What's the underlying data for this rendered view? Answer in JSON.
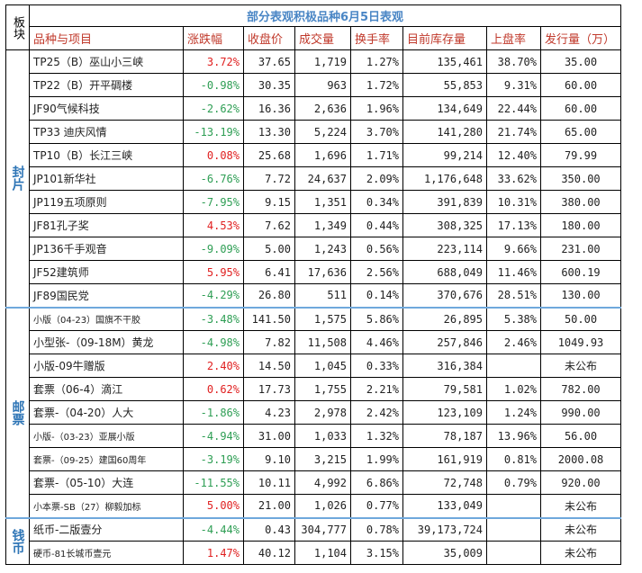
{
  "header": {
    "board": "板块",
    "title": "部分表观积极品种6月5日表观",
    "columns": [
      "品种与项目",
      "涨跌幅",
      "收盘价",
      "成交量",
      "换手率",
      "目前库存量",
      "上盘率",
      "发行量（万）"
    ]
  },
  "sectors": [
    {
      "label": "封片",
      "rows": [
        {
          "name": "TP25（B）巫山小三峡",
          "change": "3.72%",
          "dir": "up",
          "close": "37.65",
          "volume": "1,719",
          "turnover": "1.27%",
          "stock": "135,461",
          "listing": "38.70%",
          "issue": "35.00"
        },
        {
          "name": "TP22（B）开平碉楼",
          "change": "-0.98%",
          "dir": "down",
          "close": "30.35",
          "volume": "963",
          "turnover": "1.72%",
          "stock": "55,853",
          "listing": "9.31%",
          "issue": "60.00"
        },
        {
          "name": "JF90气候科技",
          "change": "-2.62%",
          "dir": "down",
          "close": "16.36",
          "volume": "2,636",
          "turnover": "1.96%",
          "stock": "134,649",
          "listing": "22.44%",
          "issue": "60.00"
        },
        {
          "name": "TP33 迪庆风情",
          "change": "-13.19%",
          "dir": "down",
          "close": "13.30",
          "volume": "5,224",
          "turnover": "3.70%",
          "stock": "141,280",
          "listing": "21.74%",
          "issue": "65.00"
        },
        {
          "name": "TP10（B）长江三峡",
          "change": "0.08%",
          "dir": "up",
          "close": "25.68",
          "volume": "1,696",
          "turnover": "1.71%",
          "stock": "99,214",
          "listing": "12.40%",
          "issue": "79.99"
        },
        {
          "name": "JP101新华社",
          "change": "-6.76%",
          "dir": "down",
          "close": "7.72",
          "volume": "24,637",
          "turnover": "2.09%",
          "stock": "1,176,648",
          "listing": "33.62%",
          "issue": "350.00"
        },
        {
          "name": "JP119五项原则",
          "change": "-7.95%",
          "dir": "down",
          "close": "9.15",
          "volume": "1,351",
          "turnover": "0.34%",
          "stock": "391,839",
          "listing": "10.31%",
          "issue": "380.00"
        },
        {
          "name": "JF81孔子奖",
          "change": "4.53%",
          "dir": "up",
          "close": "7.62",
          "volume": "1,349",
          "turnover": "0.44%",
          "stock": "308,325",
          "listing": "17.13%",
          "issue": "180.00"
        },
        {
          "name": "JP136千手观音",
          "change": "-9.09%",
          "dir": "down",
          "close": "5.00",
          "volume": "1,243",
          "turnover": "0.56%",
          "stock": "223,114",
          "listing": "9.66%",
          "issue": "231.00"
        },
        {
          "name": "JF52建筑师",
          "change": "5.95%",
          "dir": "up",
          "close": "6.41",
          "volume": "17,636",
          "turnover": "2.56%",
          "stock": "688,049",
          "listing": "11.46%",
          "issue": "600.19"
        },
        {
          "name": "JF89国民党",
          "change": "-4.29%",
          "dir": "down",
          "close": "26.80",
          "volume": "511",
          "turnover": "0.14%",
          "stock": "370,676",
          "listing": "28.51%",
          "issue": "130.00"
        }
      ]
    },
    {
      "label": "邮票",
      "rows": [
        {
          "name": "小版（04-23）国旗不干胶",
          "small": true,
          "change": "-3.48%",
          "dir": "down",
          "close": "141.50",
          "volume": "1,575",
          "turnover": "5.86%",
          "stock": "26,895",
          "listing": "5.38%",
          "issue": "50.00"
        },
        {
          "name": "小型张-（09-18M）黄龙",
          "change": "-4.98%",
          "dir": "down",
          "close": "7.82",
          "volume": "11,508",
          "turnover": "4.46%",
          "stock": "257,846",
          "listing": "2.46%",
          "issue": "1049.93"
        },
        {
          "name": "小版-09牛赠版",
          "change": "2.40%",
          "dir": "up",
          "close": "14.50",
          "volume": "1,045",
          "turnover": "0.33%",
          "stock": "316,384",
          "listing": "",
          "issue": "未公布"
        },
        {
          "name": "套票（06-4）滴江",
          "change": "0.62%",
          "dir": "up",
          "close": "17.73",
          "volume": "1,755",
          "turnover": "2.21%",
          "stock": "79,581",
          "listing": "1.02%",
          "issue": "782.00"
        },
        {
          "name": "套票-（04-20）人大",
          "change": "-1.86%",
          "dir": "down",
          "close": "4.23",
          "volume": "2,978",
          "turnover": "2.42%",
          "stock": "123,109",
          "listing": "1.24%",
          "issue": "990.00"
        },
        {
          "name": "小版-（03-23）亚展小版",
          "small": true,
          "change": "-4.94%",
          "dir": "down",
          "close": "31.00",
          "volume": "1,033",
          "turnover": "1.32%",
          "stock": "78,187",
          "listing": "13.96%",
          "issue": "56.00"
        },
        {
          "name": "套票-（09-25）建国60周年",
          "small": true,
          "change": "-3.19%",
          "dir": "down",
          "close": "9.10",
          "volume": "3,215",
          "turnover": "1.99%",
          "stock": "161,919",
          "listing": "0.81%",
          "issue": "2000.08"
        },
        {
          "name": "套票-（05-10）大连",
          "change": "-11.55%",
          "dir": "down",
          "close": "10.11",
          "volume": "4,992",
          "turnover": "6.86%",
          "stock": "72,748",
          "listing": "0.79%",
          "issue": "920.00"
        },
        {
          "name": "小本票-SB（27）柳毅加标",
          "small": true,
          "change": "5.00%",
          "dir": "up",
          "close": "21.00",
          "volume": "1,026",
          "turnover": "0.77%",
          "stock": "133,049",
          "listing": "",
          "issue": "未公布"
        }
      ]
    },
    {
      "label": "钱币",
      "rows": [
        {
          "name": "纸币-二版壹分",
          "change": "-4.44%",
          "dir": "down",
          "close": "0.43",
          "volume": "304,777",
          "turnover": "0.78%",
          "stock": "39,173,724",
          "listing": "",
          "issue": "未公布"
        },
        {
          "name": "硬币-81长城币壹元",
          "small": true,
          "change": "1.47%",
          "dir": "up",
          "close": "40.12",
          "volume": "1,104",
          "turnover": "3.15%",
          "stock": "35,009",
          "listing": "",
          "issue": "未公布"
        }
      ]
    }
  ]
}
